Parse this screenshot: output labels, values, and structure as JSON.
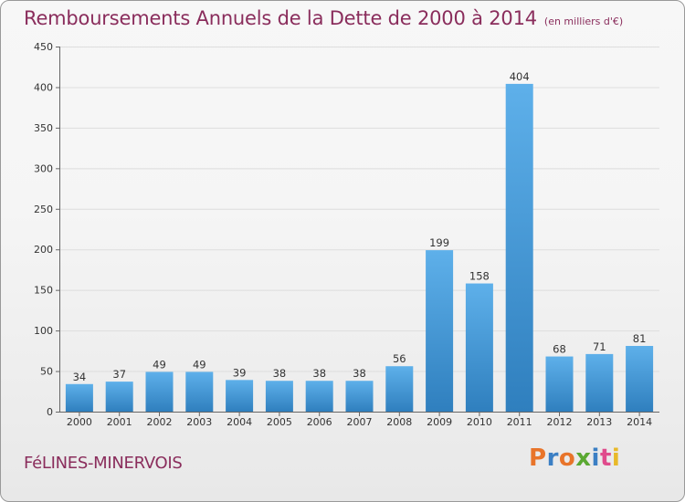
{
  "header": {
    "title": "Remboursements Annuels de la Dette de 2000 à 2014",
    "subtitle": "(en milliers d'€)"
  },
  "footer": {
    "city": "FéLINES-MINERVOIS",
    "logo_text": "Proxiti",
    "logo_colors": [
      "#e8742a",
      "#3b7fc4",
      "#e8742a",
      "#5aa832",
      "#3b7fc4",
      "#e04b8c",
      "#e8b92a"
    ]
  },
  "colors": {
    "bar_top": "#5eb0ea",
    "bar_bottom": "#2f7fbe",
    "grid": "#dddddd",
    "axis": "#666666",
    "title": "#8a2d5c"
  },
  "chart_data": {
    "type": "bar",
    "categories": [
      "2000",
      "2001",
      "2002",
      "2003",
      "2004",
      "2005",
      "2006",
      "2007",
      "2008",
      "2009",
      "2010",
      "2011",
      "2012",
      "2013",
      "2014"
    ],
    "values": [
      34,
      37,
      49,
      49,
      39,
      38,
      38,
      38,
      56,
      199,
      158,
      404,
      68,
      71,
      81
    ],
    "data_labels": [
      "34",
      "37",
      "49",
      "49",
      "39",
      "38",
      "38",
      "38",
      "56",
      "199",
      "158",
      "404",
      "68",
      "71",
      "81"
    ],
    "y_ticks": [
      "0",
      "50",
      "100",
      "150",
      "200",
      "250",
      "300",
      "350",
      "400",
      "450"
    ],
    "ylim": [
      0,
      450
    ],
    "grid": true,
    "title": "Remboursements Annuels de la Dette de 2000 à 2014",
    "xlabel": "",
    "ylabel": ""
  }
}
